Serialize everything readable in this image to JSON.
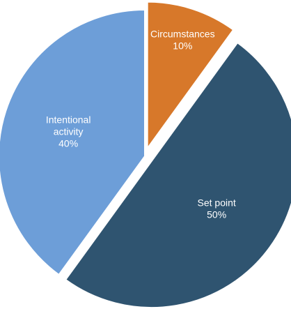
{
  "chart_data": {
    "type": "pie",
    "slices": [
      {
        "label": "Circumstances",
        "value": 10,
        "value_label": "10%",
        "color": "#d7782a",
        "exploded": true
      },
      {
        "label": "Set point",
        "value": 50,
        "value_label": "50%",
        "color": "#2f5470",
        "exploded": true
      },
      {
        "label": "Intentional activity",
        "label_lines": [
          "Intentional",
          "activity"
        ],
        "value": 40,
        "value_label": "40%",
        "color": "#6d9ed8",
        "exploded": false
      }
    ],
    "legend": "none",
    "start_angle_deg": 0,
    "direction": "clockwise"
  }
}
